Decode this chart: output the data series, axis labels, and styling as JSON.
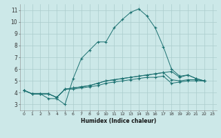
{
  "xlabel": "Humidex (Indice chaleur)",
  "bg_color": "#cce8e8",
  "line_color": "#1a7070",
  "grid_color": "#aacccc",
  "xlim": [
    -0.5,
    23.5
  ],
  "ylim": [
    2.5,
    11.5
  ],
  "xticks": [
    0,
    1,
    2,
    3,
    4,
    5,
    6,
    7,
    8,
    9,
    10,
    11,
    12,
    13,
    14,
    15,
    16,
    17,
    18,
    19,
    20,
    21,
    22,
    23
  ],
  "yticks": [
    3,
    4,
    5,
    6,
    7,
    8,
    9,
    10,
    11
  ],
  "series": [
    [
      4.2,
      3.9,
      3.9,
      3.5,
      3.5,
      3.0,
      5.2,
      6.9,
      7.6,
      8.3,
      8.3,
      9.5,
      10.2,
      10.8,
      11.1,
      10.5,
      9.5,
      7.9,
      6.0,
      5.4,
      5.5,
      5.2,
      5.0,
      null
    ],
    [
      4.2,
      3.9,
      3.9,
      3.9,
      3.6,
      4.3,
      4.4,
      4.5,
      4.6,
      4.8,
      5.0,
      5.1,
      5.2,
      5.3,
      5.4,
      5.5,
      5.6,
      5.7,
      5.8,
      5.3,
      5.5,
      5.2,
      5.0,
      null
    ],
    [
      4.2,
      3.9,
      3.9,
      3.9,
      3.6,
      4.3,
      4.4,
      4.5,
      4.6,
      4.8,
      5.0,
      5.1,
      5.2,
      5.3,
      5.4,
      5.5,
      5.6,
      5.7,
      5.1,
      5.0,
      5.1,
      5.1,
      5.0,
      null
    ],
    [
      4.2,
      3.9,
      3.9,
      3.9,
      3.6,
      4.3,
      4.3,
      4.4,
      4.5,
      4.6,
      4.8,
      4.9,
      5.0,
      5.1,
      5.2,
      5.3,
      5.3,
      5.4,
      4.8,
      4.9,
      5.0,
      5.0,
      5.0,
      null
    ]
  ]
}
